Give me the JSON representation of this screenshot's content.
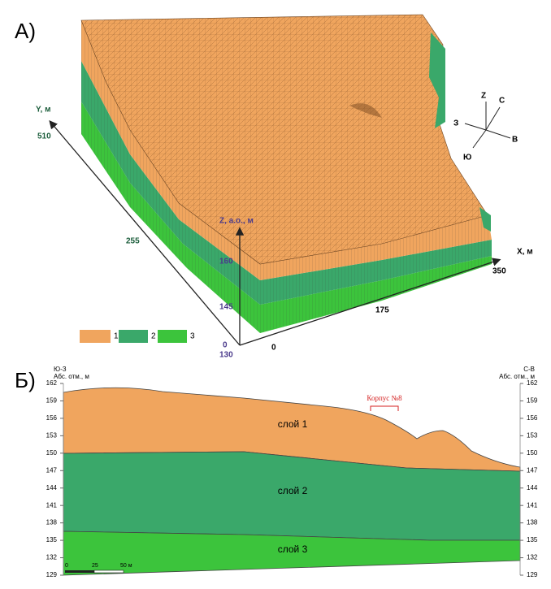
{
  "panel_a": {
    "label": "А)",
    "axes": {
      "x": {
        "label": "X, м",
        "ticks": [
          0,
          175,
          350
        ]
      },
      "y": {
        "label": "Y, м",
        "ticks": [
          255,
          510
        ]
      },
      "z": {
        "label": "Z, а.о., м",
        "ticks": [
          0,
          130,
          145,
          160
        ]
      }
    },
    "compass": {
      "up": "Z",
      "north": "С",
      "east": "В",
      "south": "Ю",
      "west": "З"
    },
    "legend": [
      "1",
      "2",
      "3"
    ]
  },
  "panel_b": {
    "label": "Б)",
    "left_header": [
      "Ю-З",
      "Абс. отм., м"
    ],
    "right_header": [
      "С-В",
      "Абс. отм., м"
    ],
    "ticks": [
      162,
      159,
      156,
      153,
      150,
      147,
      144,
      141,
      138,
      135,
      132,
      129
    ],
    "layers": [
      "слой 1",
      "слой 2",
      "слой 3"
    ],
    "annotation": "Корпус №8",
    "scale_bar": [
      "0",
      "25",
      "50 м"
    ]
  }
}
